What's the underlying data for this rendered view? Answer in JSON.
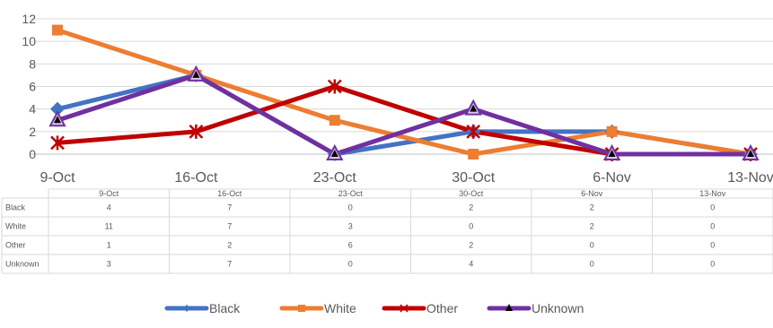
{
  "chart_data": {
    "type": "line",
    "categories": [
      "9-Oct",
      "16-Oct",
      "23-Oct",
      "30-Oct",
      "6-Nov",
      "13-Nov"
    ],
    "ylim": [
      0,
      12
    ],
    "yticks": [
      0,
      2,
      4,
      6,
      8,
      10,
      12
    ],
    "grid": true,
    "legend_position": "bottom",
    "data_table": true,
    "series": [
      {
        "name": "Black",
        "color": "#4472C4",
        "marker": "diamond",
        "values": [
          4,
          7,
          0,
          2,
          2,
          0
        ]
      },
      {
        "name": "White",
        "color": "#ED7D31",
        "marker": "square",
        "values": [
          11,
          7,
          3,
          0,
          2,
          0
        ]
      },
      {
        "name": "Other",
        "color": "#C00000",
        "marker": "star",
        "values": [
          1,
          2,
          6,
          2,
          0,
          0
        ]
      },
      {
        "name": "Unknown",
        "color": "#7030A0",
        "marker": "triangle",
        "values": [
          3,
          7,
          0,
          4,
          0,
          0
        ]
      }
    ]
  }
}
